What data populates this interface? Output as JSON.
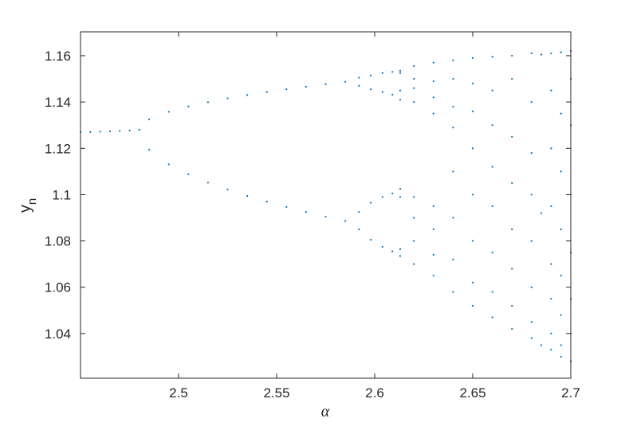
{
  "chart_data": {
    "type": "scatter",
    "xlabel": "α",
    "ylabel": {
      "text": "y",
      "subscript": "n"
    },
    "color": "#0072bd",
    "xlim": [
      2.45,
      2.7
    ],
    "xticks": [
      2.5,
      2.55,
      2.6,
      2.65,
      2.7
    ],
    "ylim": [
      1.0207,
      1.1703
    ],
    "yticks": [
      1.04,
      1.06,
      1.08,
      1.1,
      1.12,
      1.14,
      1.16
    ],
    "x": [
      2.45,
      2.455,
      2.46,
      2.465,
      2.47,
      2.475,
      2.48,
      2.485,
      2.485,
      2.495,
      2.495,
      2.505,
      2.505,
      2.515,
      2.515,
      2.525,
      2.525,
      2.535,
      2.535,
      2.545,
      2.545,
      2.555,
      2.555,
      2.565,
      2.565,
      2.575,
      2.575,
      2.585,
      2.585,
      2.592,
      2.592,
      2.592,
      2.592,
      2.598,
      2.598,
      2.598,
      2.598,
      2.604,
      2.604,
      2.604,
      2.604,
      2.609,
      2.609,
      2.609,
      2.609,
      2.613,
      2.613,
      2.613,
      2.613,
      2.613,
      2.613,
      2.613,
      2.613,
      2.62,
      2.62,
      2.62,
      2.62,
      2.62,
      2.62,
      2.62,
      2.62,
      2.63,
      2.63,
      2.63,
      2.63,
      2.63,
      2.63,
      2.63,
      2.63,
      2.64,
      2.64,
      2.64,
      2.64,
      2.64,
      2.64,
      2.64,
      2.64,
      2.65,
      2.65,
      2.65,
      2.65,
      2.65,
      2.65,
      2.65,
      2.65,
      2.66,
      2.66,
      2.66,
      2.66,
      2.66,
      2.66,
      2.66,
      2.66,
      2.67,
      2.67,
      2.67,
      2.67,
      2.67,
      2.67,
      2.67,
      2.67,
      2.68,
      2.68,
      2.68,
      2.68,
      2.68,
      2.68,
      2.68,
      2.68,
      2.685,
      2.685,
      2.685,
      2.69,
      2.69,
      2.69,
      2.69,
      2.69,
      2.69,
      2.69,
      2.69,
      2.695,
      2.695,
      2.695,
      2.695,
      2.695,
      2.695,
      2.695,
      2.695,
      2.7,
      2.7,
      2.7,
      2.7,
      2.7,
      2.7,
      2.7,
      2.7
    ],
    "values": [
      1.127,
      1.127,
      1.1272,
      1.1273,
      1.1275,
      1.1277,
      1.128,
      1.1325,
      1.1194,
      1.1358,
      1.1131,
      1.1381,
      1.1088,
      1.1399,
      1.1052,
      1.1416,
      1.1022,
      1.143,
      1.0994,
      1.1443,
      1.097,
      1.1455,
      1.0947,
      1.1466,
      1.0925,
      1.1477,
      1.0905,
      1.1487,
      1.0886,
      1.1505,
      1.147,
      1.0925,
      1.085,
      1.1515,
      1.1455,
      1.0965,
      1.0805,
      1.1525,
      1.1443,
      1.099,
      1.0775,
      1.153,
      1.1432,
      1.1005,
      1.0755,
      1.1535,
      1.1525,
      1.145,
      1.141,
      1.1025,
      1.099,
      1.0765,
      1.0735,
      1.1555,
      1.15,
      1.146,
      1.14,
      1.099,
      1.09,
      1.08,
      1.07,
      1.157,
      1.149,
      1.142,
      1.135,
      1.095,
      1.085,
      1.074,
      1.065,
      1.158,
      1.15,
      1.138,
      1.129,
      1.11,
      1.09,
      1.072,
      1.058,
      1.159,
      1.148,
      1.136,
      1.12,
      1.1,
      1.08,
      1.062,
      1.052,
      1.1595,
      1.145,
      1.13,
      1.112,
      1.095,
      1.075,
      1.058,
      1.047,
      1.16,
      1.15,
      1.125,
      1.105,
      1.085,
      1.068,
      1.052,
      1.042,
      1.161,
      1.14,
      1.118,
      1.1,
      1.08,
      1.06,
      1.045,
      1.038,
      1.1605,
      1.092,
      1.035,
      1.161,
      1.145,
      1.12,
      1.095,
      1.07,
      1.055,
      1.04,
      1.033,
      1.1615,
      1.135,
      1.11,
      1.085,
      1.065,
      1.048,
      1.035,
      1.03,
      1.162,
      1.15,
      1.13,
      1.1,
      1.075,
      1.055,
      1.04,
      1.028
    ]
  }
}
